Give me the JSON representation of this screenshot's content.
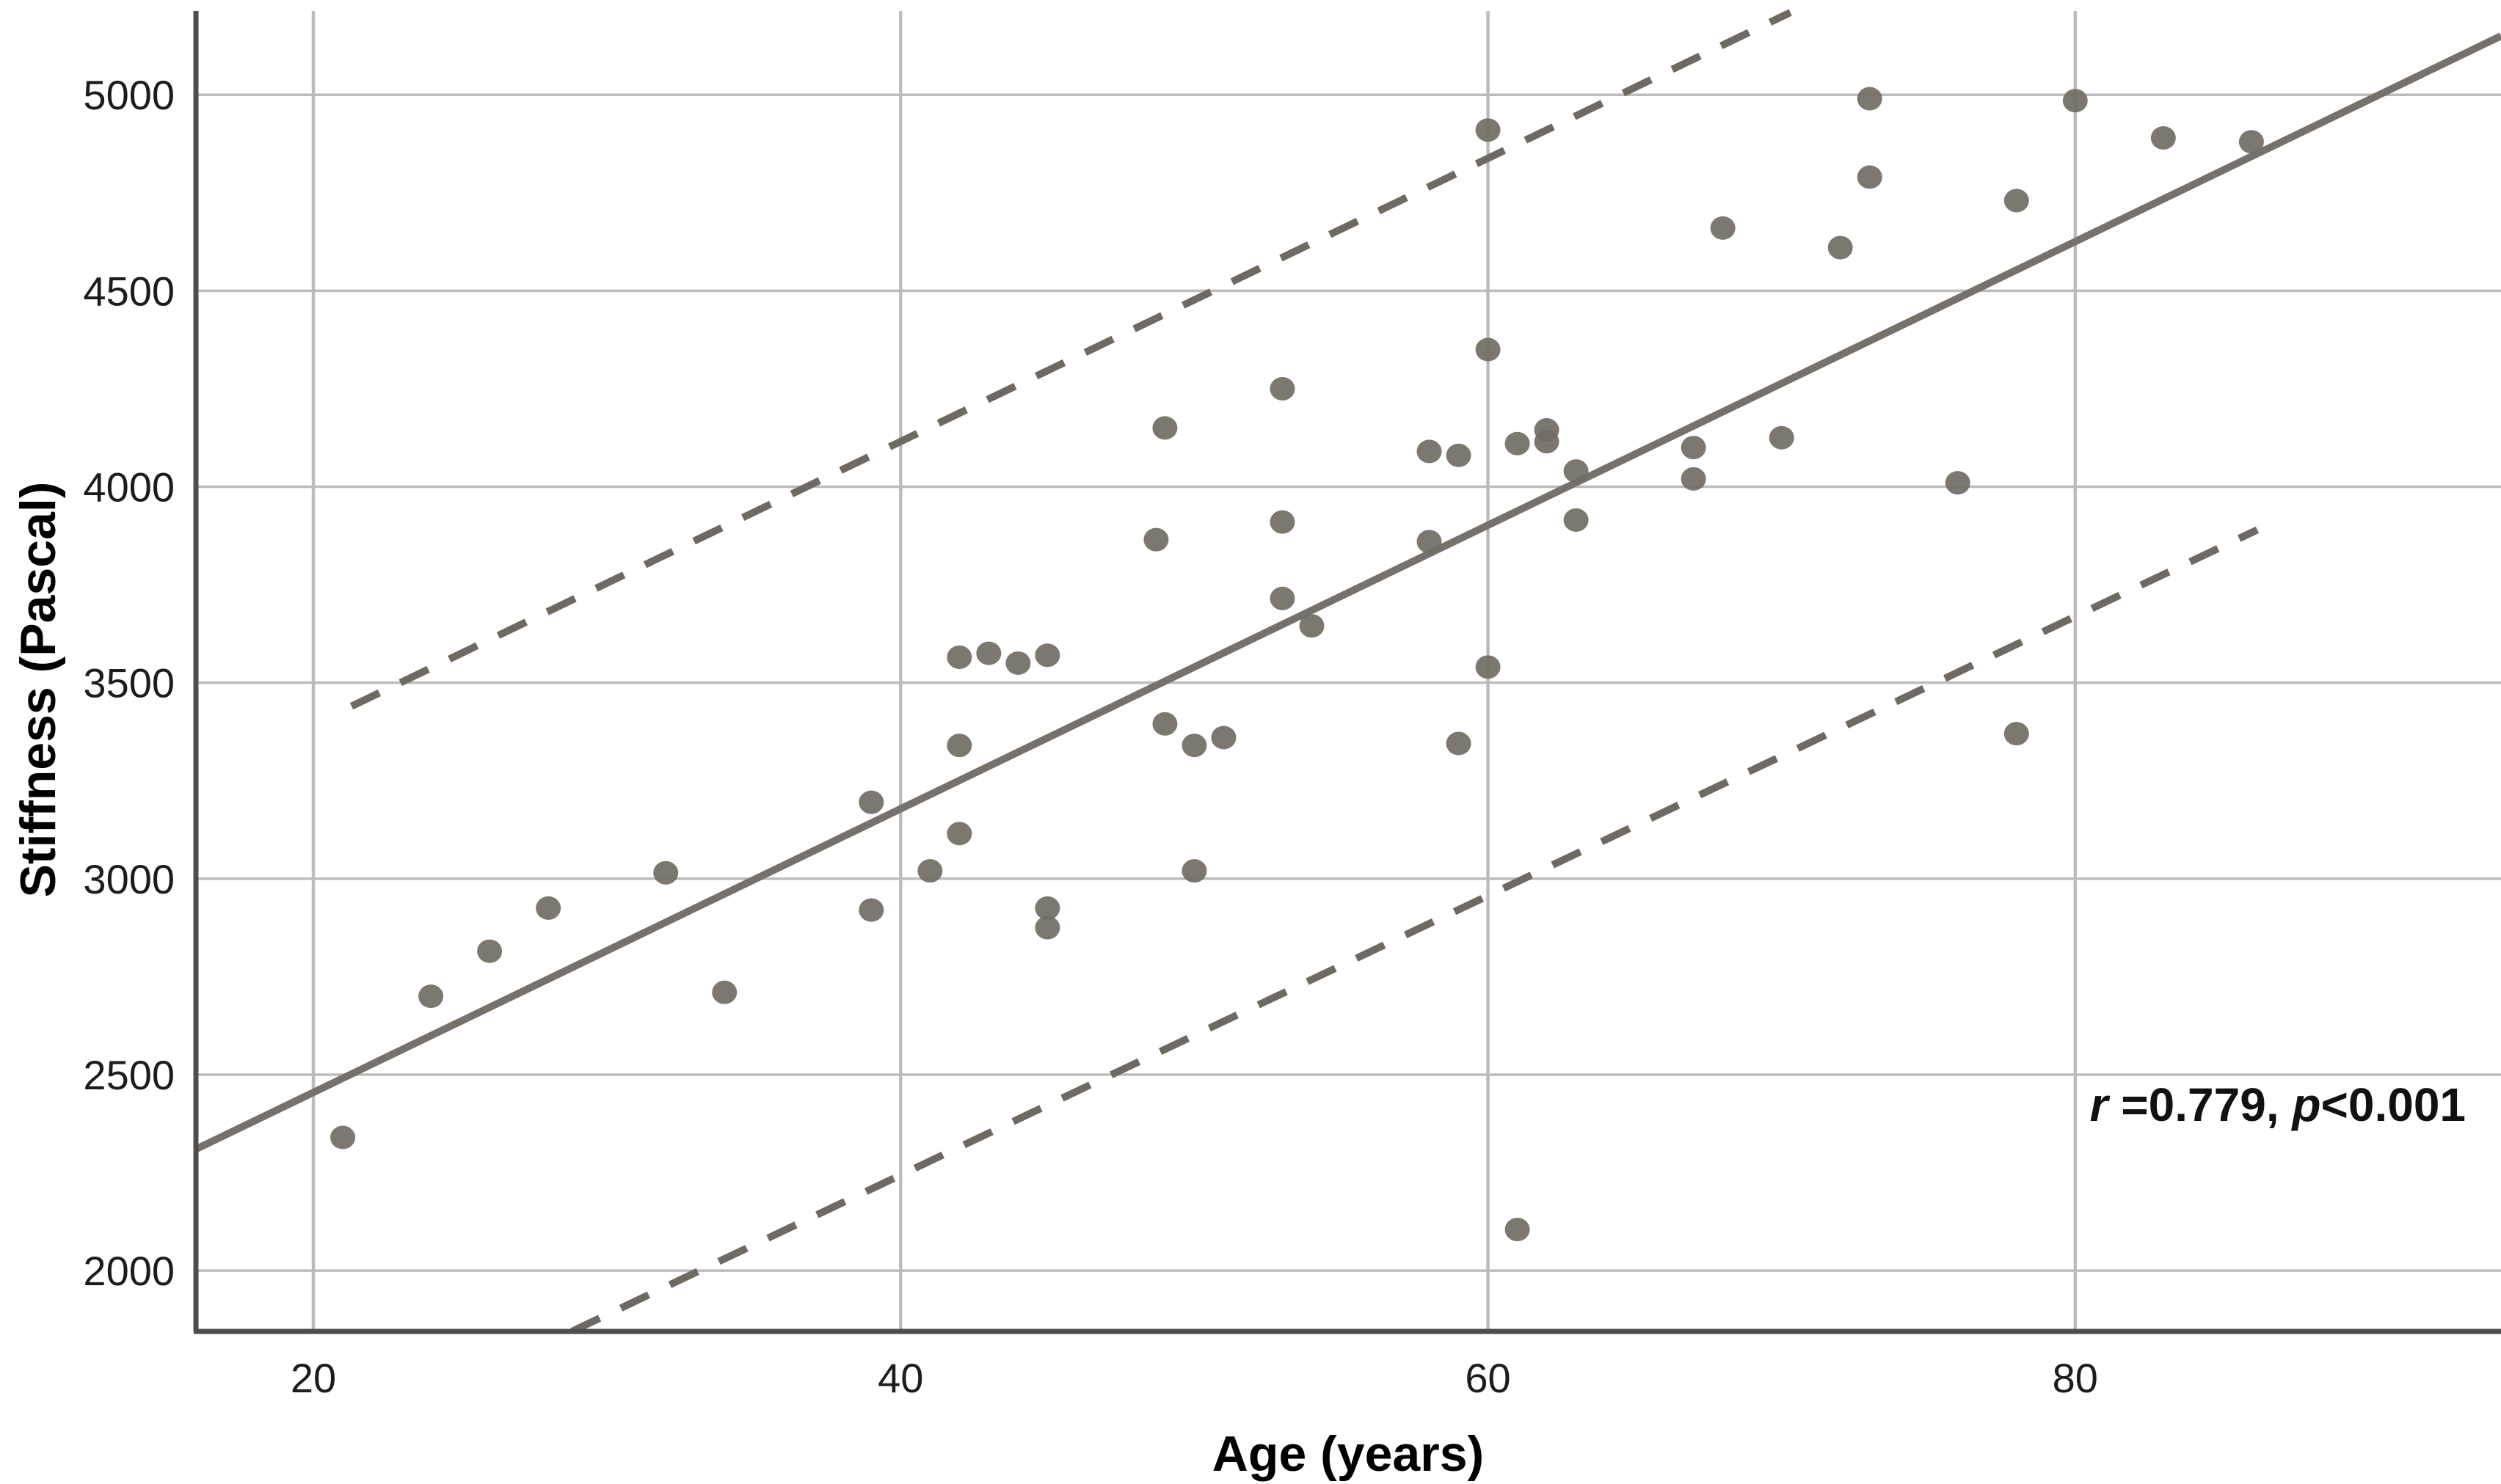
{
  "chart_data": {
    "type": "scatter",
    "title": "",
    "xlabel": "Age (years)",
    "ylabel": "Stiffness (Pascal)",
    "xlim": [
      16,
      94.5
    ],
    "ylim": [
      1845,
      5195
    ],
    "x_ticks": [
      20,
      40,
      60,
      80
    ],
    "y_ticks": [
      2000,
      2500,
      3000,
      3500,
      4000,
      4500,
      5000
    ],
    "grid": true,
    "legend": "none",
    "annotation": {
      "r_label": "r",
      "r_text": " =0.779, ",
      "p_label": "p",
      "p_text": "<0.001",
      "anchor_x": 77.8,
      "anchor_y": 2415
    },
    "points": [
      {
        "x": 21,
        "y": 2340
      },
      {
        "x": 24,
        "y": 2700
      },
      {
        "x": 26,
        "y": 2815
      },
      {
        "x": 28,
        "y": 2925
      },
      {
        "x": 32,
        "y": 3015
      },
      {
        "x": 34,
        "y": 2710
      },
      {
        "x": 39,
        "y": 3195
      },
      {
        "x": 39,
        "y": 2920
      },
      {
        "x": 41,
        "y": 3020
      },
      {
        "x": 42,
        "y": 3340
      },
      {
        "x": 42,
        "y": 3115
      },
      {
        "x": 42,
        "y": 3565
      },
      {
        "x": 43,
        "y": 3575
      },
      {
        "x": 44,
        "y": 3550
      },
      {
        "x": 45,
        "y": 3570
      },
      {
        "x": 45,
        "y": 2925
      },
      {
        "x": 45,
        "y": 2875
      },
      {
        "x": 48.7,
        "y": 3865
      },
      {
        "x": 49,
        "y": 4150
      },
      {
        "x": 49,
        "y": 3395
      },
      {
        "x": 50,
        "y": 3340
      },
      {
        "x": 51,
        "y": 3360
      },
      {
        "x": 50,
        "y": 3020
      },
      {
        "x": 53,
        "y": 4250
      },
      {
        "x": 53,
        "y": 3910
      },
      {
        "x": 53,
        "y": 3715
      },
      {
        "x": 54,
        "y": 3645
      },
      {
        "x": 58,
        "y": 3860
      },
      {
        "x": 58,
        "y": 4090
      },
      {
        "x": 59,
        "y": 4080
      },
      {
        "x": 59,
        "y": 3345
      },
      {
        "x": 60,
        "y": 3540
      },
      {
        "x": 60,
        "y": 4910
      },
      {
        "x": 60,
        "y": 4350
      },
      {
        "x": 61,
        "y": 2105
      },
      {
        "x": 61,
        "y": 4110
      },
      {
        "x": 62,
        "y": 4145
      },
      {
        "x": 62,
        "y": 4115
      },
      {
        "x": 63,
        "y": 4040
      },
      {
        "x": 63,
        "y": 3915
      },
      {
        "x": 67,
        "y": 4100
      },
      {
        "x": 67,
        "y": 4020
      },
      {
        "x": 68,
        "y": 4660
      },
      {
        "x": 70,
        "y": 4125
      },
      {
        "x": 72,
        "y": 4610
      },
      {
        "x": 73,
        "y": 4990
      },
      {
        "x": 73,
        "y": 4790
      },
      {
        "x": 76,
        "y": 4010
      },
      {
        "x": 78,
        "y": 4730
      },
      {
        "x": 78,
        "y": 3370
      },
      {
        "x": 80,
        "y": 4985
      },
      {
        "x": 83,
        "y": 4890
      },
      {
        "x": 86,
        "y": 4880
      }
    ],
    "regression_line": {
      "x1": 16,
      "y1": 2310,
      "x2": 94.5,
      "y2": 5150
    },
    "ci_upper_line": {
      "x1": 21.3,
      "y1": 3440,
      "x2": 70.3,
      "y2": 5210
    },
    "ci_lower_line": {
      "x1": 28.8,
      "y1": 1845,
      "x2": 86.2,
      "y2": 3890
    },
    "colors": {
      "point": "#716c64",
      "regression": "#76716a",
      "ci_dashed": "#6e6962",
      "gridline": "#bcbcbc",
      "axis": "#4d4d4d",
      "background": "#ffffff",
      "text": "#111111"
    }
  }
}
